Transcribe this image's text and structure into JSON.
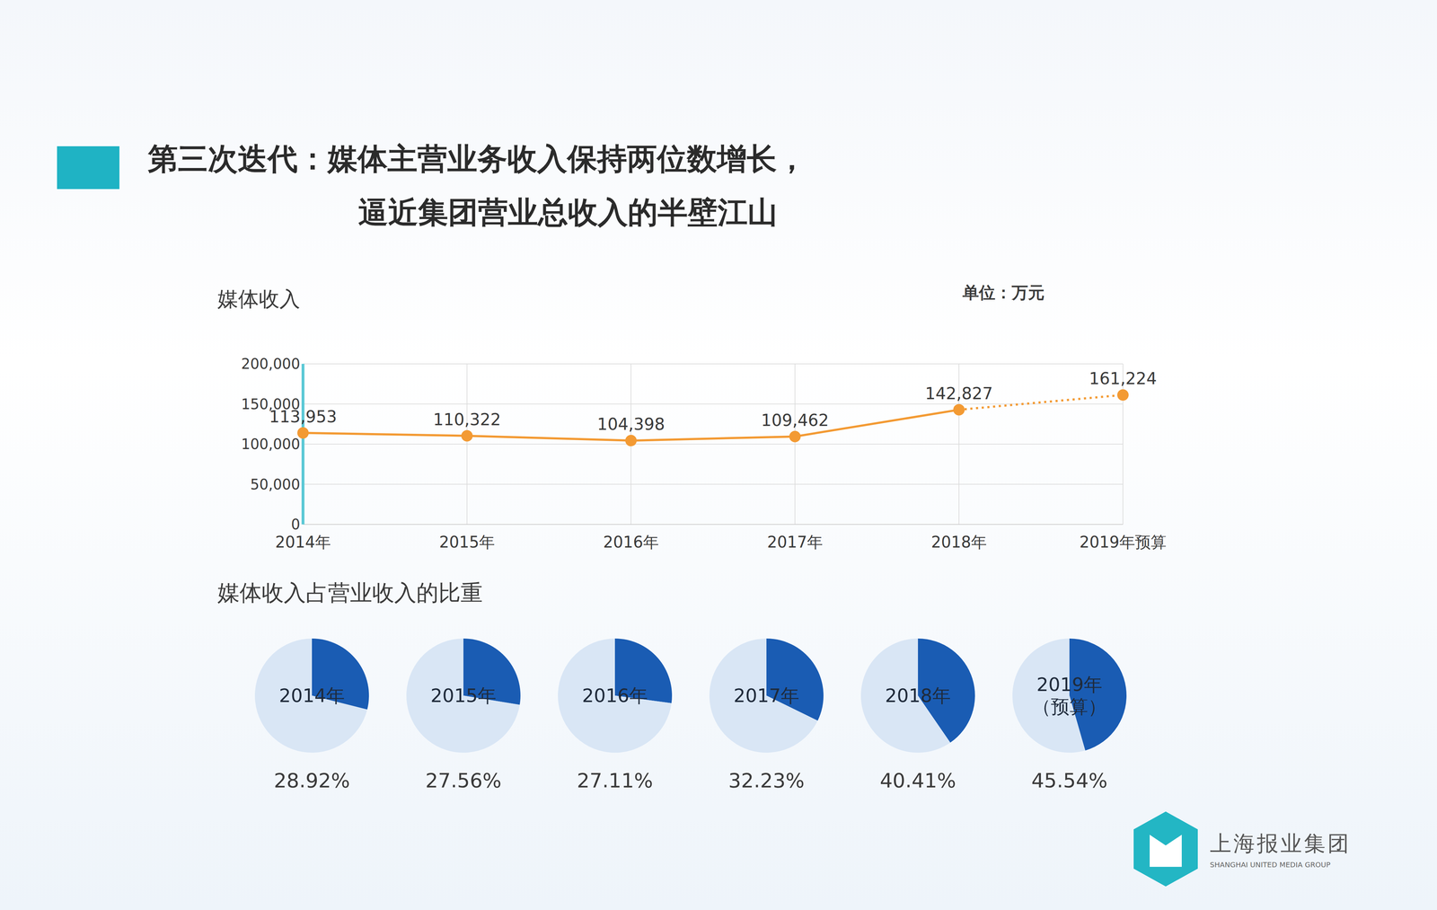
{
  "title": [
    "第三次迭代：媒体主营业务收入保持两位数增长，",
    "逼近集团营业总收入的半壁江山"
  ],
  "logo": {
    "name": "上海报业集团",
    "name_en": "SHANGHAI UNITED MEDIA GROUP"
  },
  "chart_data": [
    {
      "type": "line",
      "title": "媒体收入",
      "annotation": "单位：万元",
      "categories": [
        "2014年",
        "2015年",
        "2016年",
        "2017年",
        "2018年",
        "2019年预算"
      ],
      "values": [
        113953,
        110322,
        104398,
        109462,
        142827,
        161224
      ],
      "value_labels": [
        "113,953",
        "110,322",
        "104,398",
        "109,462",
        "142,827",
        "161,224"
      ],
      "data_labels": true,
      "color": "#f39a33",
      "marker": "circle",
      "ylim": [
        0,
        200000
      ],
      "yticks": [
        0,
        {
          "value": 50000,
          "label": "50,000"
        },
        {
          "value": 100000,
          "label": "100,000"
        },
        {
          "value": 150000,
          "label": "150,000"
        },
        {
          "value": 200000,
          "label": "200,000"
        }
      ],
      "grid": true
    },
    {
      "type": "pie",
      "title": "媒体收入占营业收入的比重",
      "categories": [
        "2014年",
        "2015年",
        "2016年",
        "2017年",
        "2018年",
        "2019年（预算）"
      ],
      "values": [
        28.92,
        27.56,
        27.11,
        32.23,
        40.41,
        45.54
      ],
      "value_labels": [
        "28.92%",
        "27.56%",
        "27.11%",
        "32.23%",
        "40.41%",
        "45.54%"
      ],
      "data_labels": true,
      "color": "#1a5cb3"
    }
  ]
}
